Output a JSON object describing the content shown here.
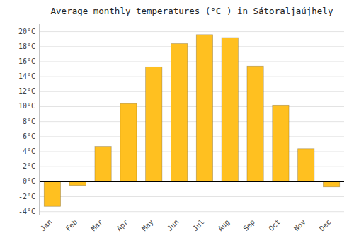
{
  "chart_data": {
    "type": "bar",
    "title": "Average monthly temperatures (°C ) in Sátoraljaújhely",
    "categories": [
      "Jan",
      "Feb",
      "Mar",
      "Apr",
      "May",
      "Jun",
      "Jul",
      "Aug",
      "Sep",
      "Oct",
      "Nov",
      "Dec"
    ],
    "values": [
      -3.3,
      -0.5,
      4.7,
      10.4,
      15.3,
      18.4,
      19.6,
      19.2,
      15.4,
      10.2,
      4.4,
      -0.7
    ],
    "color": "#FFC020",
    "ylim": [
      -4.5,
      21
    ],
    "yticks": [
      {
        "value": -4,
        "label": "-4°C"
      },
      {
        "value": -2,
        "label": "-2°C"
      },
      {
        "value": 0,
        "label": "0°C"
      },
      {
        "value": 2,
        "label": "2°C"
      },
      {
        "value": 4,
        "label": "4°C"
      },
      {
        "value": 6,
        "label": "6°C"
      },
      {
        "value": 8,
        "label": "8°C"
      },
      {
        "value": 10,
        "label": "10°C"
      },
      {
        "value": 12,
        "label": "12°C"
      },
      {
        "value": 14,
        "label": "14°C"
      },
      {
        "value": 16,
        "label": "16°C"
      },
      {
        "value": 18,
        "label": "18°C"
      },
      {
        "value": 20,
        "label": "20°C"
      }
    ],
    "grid": true
  }
}
